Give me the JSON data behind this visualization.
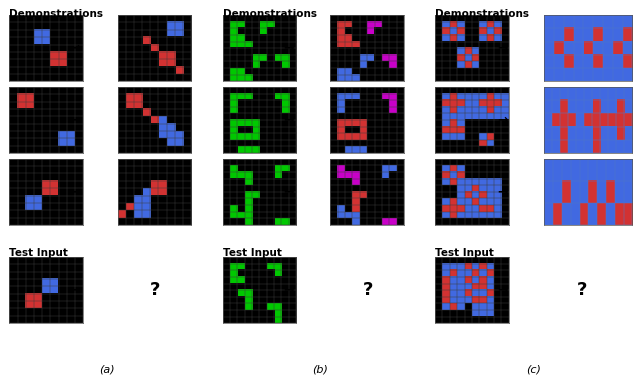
{
  "fig_width": 6.4,
  "fig_height": 3.78,
  "dpi": 100,
  "grid_color": [
    60,
    60,
    60
  ],
  "black": [
    0,
    0,
    0
  ],
  "blue": [
    65,
    105,
    225
  ],
  "red": [
    210,
    50,
    50
  ],
  "green": [
    0,
    200,
    0
  ],
  "magenta": [
    200,
    0,
    200
  ],
  "white": [
    255,
    255,
    255
  ],
  "panel_border": "#888888",
  "panel_labels": [
    "(a)",
    "(b)",
    "(c)"
  ],
  "label_fontsize": 8,
  "title_fontsize": 8,
  "arrow_fontsize": 9,
  "qmark_fontsize": 13
}
